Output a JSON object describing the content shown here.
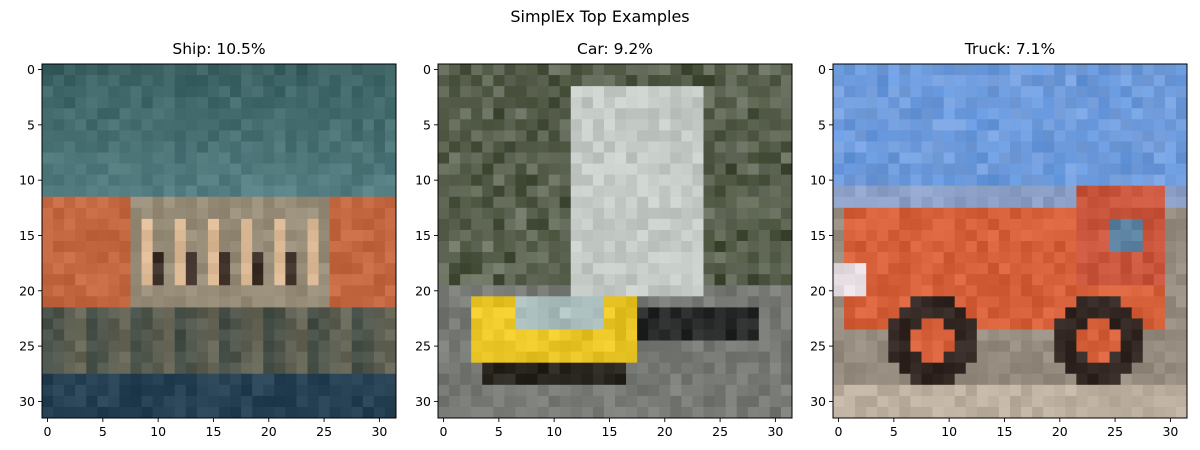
{
  "figure": {
    "title": "SimplEx Top Examples"
  },
  "colors": {
    "frame": "#000000",
    "background": "#ffffff"
  },
  "chart_data": [
    {
      "type": "heatmap",
      "title": "Ship: 10.5%",
      "image_size": [
        32,
        32
      ],
      "xlim": [
        -0.5,
        31.5
      ],
      "ylim": [
        31.5,
        -0.5
      ],
      "x_ticks": [
        0,
        5,
        10,
        15,
        20,
        25,
        30
      ],
      "y_ticks": [
        0,
        5,
        10,
        15,
        20,
        25,
        30
      ],
      "grid": false,
      "dominant_colors": [
        "#2f5e63",
        "#4f7f83",
        "#c96a3e",
        "#d8b894",
        "#253f52"
      ]
    },
    {
      "type": "heatmap",
      "title": "Car: 9.2%",
      "image_size": [
        32,
        32
      ],
      "xlim": [
        -0.5,
        31.5
      ],
      "ylim": [
        31.5,
        -0.5
      ],
      "x_ticks": [
        0,
        5,
        10,
        15,
        20,
        25,
        30
      ],
      "y_ticks": [
        0,
        5,
        10,
        15,
        20,
        25,
        30
      ],
      "grid": false,
      "dominant_colors": [
        "#4b5238",
        "#c7ccc8",
        "#e9c623",
        "#8e8f8c",
        "#1e1f1e"
      ]
    },
    {
      "type": "heatmap",
      "title": "Truck: 7.1%",
      "image_size": [
        32,
        32
      ],
      "xlim": [
        -0.5,
        31.5
      ],
      "ylim": [
        31.5,
        -0.5
      ],
      "x_ticks": [
        0,
        5,
        10,
        15,
        20,
        25,
        30
      ],
      "y_ticks": [
        0,
        5,
        10,
        15,
        20,
        25,
        30
      ],
      "grid": false,
      "dominant_colors": [
        "#6ea0dd",
        "#d9623a",
        "#3a2a26",
        "#a49a8c",
        "#c9b8a8"
      ]
    }
  ]
}
